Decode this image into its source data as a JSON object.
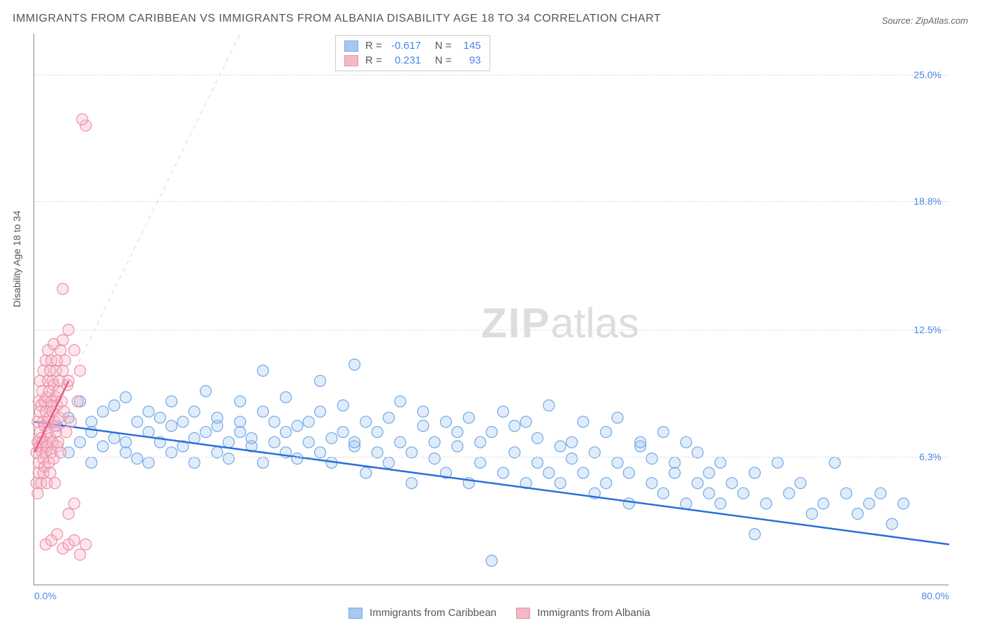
{
  "title": "IMMIGRANTS FROM CARIBBEAN VS IMMIGRANTS FROM ALBANIA DISABILITY AGE 18 TO 34 CORRELATION CHART",
  "source_label": "Source: ZipAtlas.com",
  "y_axis_label": "Disability Age 18 to 34",
  "watermark_zip": "ZIP",
  "watermark_atlas": "atlas",
  "chart": {
    "type": "scatter",
    "background_color": "#ffffff",
    "grid_color": "#dddddd",
    "axis_color": "#888888",
    "xlim": [
      0,
      80
    ],
    "ylim": [
      0,
      27
    ],
    "x_ticks": [
      {
        "pos": 0.0,
        "label": "0.0%"
      },
      {
        "pos": 80.0,
        "label": "80.0%"
      }
    ],
    "y_ticks": [
      {
        "pos": 6.3,
        "label": "6.3%"
      },
      {
        "pos": 12.5,
        "label": "12.5%"
      },
      {
        "pos": 18.8,
        "label": "18.8%"
      },
      {
        "pos": 25.0,
        "label": "25.0%"
      }
    ],
    "tick_label_color": "#4a86e8",
    "tick_label_fontsize": 14,
    "marker_radius": 8,
    "marker_fill_opacity": 0.35,
    "marker_stroke_width": 1.2,
    "trendline_width": 2.5,
    "trendline_dash_width": 1,
    "series": [
      {
        "name": "Immigrants from Caribbean",
        "color_fill": "#a8c8f0",
        "color_stroke": "#6fa8e8",
        "trendline_color": "#2a6fdc",
        "trendline": {
          "x1": 0,
          "y1": 8.0,
          "x2": 80,
          "y2": 2.0
        },
        "trendline_dashed": {
          "x1": 0,
          "y1": 8.0,
          "x2": 80,
          "y2": 2.0,
          "dash": false
        },
        "R": "-0.617",
        "N": "145",
        "points": [
          [
            2,
            7.8
          ],
          [
            3,
            8.2
          ],
          [
            3,
            6.5
          ],
          [
            4,
            7.0
          ],
          [
            4,
            9.0
          ],
          [
            5,
            8.0
          ],
          [
            5,
            6.0
          ],
          [
            5,
            7.5
          ],
          [
            6,
            8.5
          ],
          [
            6,
            6.8
          ],
          [
            7,
            7.2
          ],
          [
            7,
            8.8
          ],
          [
            8,
            6.5
          ],
          [
            8,
            7.0
          ],
          [
            8,
            9.2
          ],
          [
            9,
            8.0
          ],
          [
            9,
            6.2
          ],
          [
            10,
            7.5
          ],
          [
            10,
            8.5
          ],
          [
            10,
            6.0
          ],
          [
            11,
            7.0
          ],
          [
            11,
            8.2
          ],
          [
            12,
            6.5
          ],
          [
            12,
            9.0
          ],
          [
            12,
            7.8
          ],
          [
            13,
            6.8
          ],
          [
            13,
            8.0
          ],
          [
            14,
            7.2
          ],
          [
            14,
            6.0
          ],
          [
            14,
            8.5
          ],
          [
            15,
            7.5
          ],
          [
            15,
            9.5
          ],
          [
            16,
            6.5
          ],
          [
            16,
            7.8
          ],
          [
            16,
            8.2
          ],
          [
            17,
            7.0
          ],
          [
            17,
            6.2
          ],
          [
            18,
            8.0
          ],
          [
            18,
            7.5
          ],
          [
            18,
            9.0
          ],
          [
            19,
            6.8
          ],
          [
            19,
            7.2
          ],
          [
            20,
            8.5
          ],
          [
            20,
            6.0
          ],
          [
            20,
            10.5
          ],
          [
            21,
            7.0
          ],
          [
            21,
            8.0
          ],
          [
            22,
            6.5
          ],
          [
            22,
            7.5
          ],
          [
            22,
            9.2
          ],
          [
            23,
            7.8
          ],
          [
            23,
            6.2
          ],
          [
            24,
            8.0
          ],
          [
            24,
            7.0
          ],
          [
            25,
            6.5
          ],
          [
            25,
            8.5
          ],
          [
            25,
            10.0
          ],
          [
            26,
            7.2
          ],
          [
            26,
            6.0
          ],
          [
            27,
            7.5
          ],
          [
            27,
            8.8
          ],
          [
            28,
            6.8
          ],
          [
            28,
            7.0
          ],
          [
            28,
            10.8
          ],
          [
            29,
            8.0
          ],
          [
            29,
            5.5
          ],
          [
            30,
            6.5
          ],
          [
            30,
            7.5
          ],
          [
            31,
            8.2
          ],
          [
            31,
            6.0
          ],
          [
            32,
            7.0
          ],
          [
            32,
            9.0
          ],
          [
            33,
            6.5
          ],
          [
            33,
            5.0
          ],
          [
            34,
            7.8
          ],
          [
            34,
            8.5
          ],
          [
            35,
            6.2
          ],
          [
            35,
            7.0
          ],
          [
            36,
            8.0
          ],
          [
            36,
            5.5
          ],
          [
            37,
            7.5
          ],
          [
            37,
            6.8
          ],
          [
            38,
            8.2
          ],
          [
            38,
            5.0
          ],
          [
            39,
            7.0
          ],
          [
            39,
            6.0
          ],
          [
            40,
            1.2
          ],
          [
            40,
            7.5
          ],
          [
            41,
            8.5
          ],
          [
            41,
            5.5
          ],
          [
            42,
            6.5
          ],
          [
            42,
            7.8
          ],
          [
            43,
            5.0
          ],
          [
            43,
            8.0
          ],
          [
            44,
            6.0
          ],
          [
            44,
            7.2
          ],
          [
            45,
            5.5
          ],
          [
            45,
            8.8
          ],
          [
            46,
            6.8
          ],
          [
            46,
            5.0
          ],
          [
            47,
            7.0
          ],
          [
            47,
            6.2
          ],
          [
            48,
            5.5
          ],
          [
            48,
            8.0
          ],
          [
            49,
            4.5
          ],
          [
            49,
            6.5
          ],
          [
            50,
            7.5
          ],
          [
            50,
            5.0
          ],
          [
            51,
            6.0
          ],
          [
            51,
            8.2
          ],
          [
            52,
            5.5
          ],
          [
            52,
            4.0
          ],
          [
            53,
            6.8
          ],
          [
            53,
            7.0
          ],
          [
            54,
            5.0
          ],
          [
            54,
            6.2
          ],
          [
            55,
            7.5
          ],
          [
            55,
            4.5
          ],
          [
            56,
            5.5
          ],
          [
            56,
            6.0
          ],
          [
            57,
            4.0
          ],
          [
            57,
            7.0
          ],
          [
            58,
            5.0
          ],
          [
            58,
            6.5
          ],
          [
            59,
            4.5
          ],
          [
            59,
            5.5
          ],
          [
            60,
            6.0
          ],
          [
            60,
            4.0
          ],
          [
            61,
            5.0
          ],
          [
            62,
            4.5
          ],
          [
            63,
            2.5
          ],
          [
            63,
            5.5
          ],
          [
            64,
            4.0
          ],
          [
            65,
            6.0
          ],
          [
            66,
            4.5
          ],
          [
            67,
            5.0
          ],
          [
            68,
            3.5
          ],
          [
            69,
            4.0
          ],
          [
            70,
            6.0
          ],
          [
            71,
            4.5
          ],
          [
            72,
            3.5
          ],
          [
            73,
            4.0
          ],
          [
            74,
            4.5
          ],
          [
            75,
            3.0
          ],
          [
            76,
            4.0
          ]
        ]
      },
      {
        "name": "Immigrants from Albania",
        "color_fill": "#f5b8c8",
        "color_stroke": "#ec8fa8",
        "trendline_color": "#e85a88",
        "trendline": {
          "x1": 0,
          "y1": 6.5,
          "x2": 3,
          "y2": 10.0
        },
        "trendline_dashed": {
          "x1": 0,
          "y1": 6.5,
          "x2": 18,
          "y2": 27.0,
          "dash": true
        },
        "R": "0.231",
        "N": "93",
        "points": [
          [
            0.2,
            5.0
          ],
          [
            0.2,
            6.5
          ],
          [
            0.3,
            7.0
          ],
          [
            0.3,
            8.0
          ],
          [
            0.3,
            4.5
          ],
          [
            0.4,
            6.0
          ],
          [
            0.4,
            9.0
          ],
          [
            0.4,
            5.5
          ],
          [
            0.5,
            7.5
          ],
          [
            0.5,
            8.5
          ],
          [
            0.5,
            6.8
          ],
          [
            0.5,
            10.0
          ],
          [
            0.6,
            5.0
          ],
          [
            0.6,
            7.2
          ],
          [
            0.6,
            8.8
          ],
          [
            0.7,
            6.5
          ],
          [
            0.7,
            9.5
          ],
          [
            0.7,
            7.0
          ],
          [
            0.8,
            5.5
          ],
          [
            0.8,
            8.0
          ],
          [
            0.8,
            10.5
          ],
          [
            0.8,
            6.2
          ],
          [
            0.9,
            7.8
          ],
          [
            0.9,
            9.0
          ],
          [
            0.9,
            5.8
          ],
          [
            1.0,
            6.5
          ],
          [
            1.0,
            8.5
          ],
          [
            1.0,
            11.0
          ],
          [
            1.0,
            7.0
          ],
          [
            1.1,
            9.2
          ],
          [
            1.1,
            5.0
          ],
          [
            1.1,
            6.8
          ],
          [
            1.2,
            8.0
          ],
          [
            1.2,
            10.0
          ],
          [
            1.2,
            7.5
          ],
          [
            1.2,
            11.5
          ],
          [
            1.3,
            6.0
          ],
          [
            1.3,
            9.5
          ],
          [
            1.3,
            8.2
          ],
          [
            1.4,
            7.2
          ],
          [
            1.4,
            10.5
          ],
          [
            1.4,
            5.5
          ],
          [
            1.5,
            8.8
          ],
          [
            1.5,
            6.5
          ],
          [
            1.5,
            11.0
          ],
          [
            1.5,
            9.0
          ],
          [
            1.6,
            7.0
          ],
          [
            1.6,
            10.0
          ],
          [
            1.6,
            8.5
          ],
          [
            1.7,
            6.2
          ],
          [
            1.7,
            9.8
          ],
          [
            1.7,
            11.8
          ],
          [
            1.8,
            7.8
          ],
          [
            1.8,
            8.0
          ],
          [
            1.8,
            5.0
          ],
          [
            1.9,
            10.5
          ],
          [
            1.9,
            9.2
          ],
          [
            1.9,
            7.5
          ],
          [
            2.0,
            6.8
          ],
          [
            2.0,
            8.8
          ],
          [
            2.0,
            11.0
          ],
          [
            2.1,
            9.5
          ],
          [
            2.1,
            7.0
          ],
          [
            2.2,
            10.0
          ],
          [
            2.2,
            8.2
          ],
          [
            2.3,
            11.5
          ],
          [
            2.3,
            6.5
          ],
          [
            2.4,
            9.0
          ],
          [
            2.5,
            10.5
          ],
          [
            2.5,
            12.0
          ],
          [
            2.6,
            8.5
          ],
          [
            2.7,
            11.0
          ],
          [
            2.8,
            7.5
          ],
          [
            2.9,
            9.8
          ],
          [
            3.0,
            10.0
          ],
          [
            3.0,
            12.5
          ],
          [
            3.2,
            8.0
          ],
          [
            3.5,
            11.5
          ],
          [
            3.8,
            9.0
          ],
          [
            4.0,
            10.5
          ],
          [
            1.0,
            2.0
          ],
          [
            1.5,
            2.2
          ],
          [
            2.0,
            2.5
          ],
          [
            2.5,
            1.8
          ],
          [
            3.0,
            2.0
          ],
          [
            3.5,
            2.2
          ],
          [
            4.0,
            1.5
          ],
          [
            4.5,
            2.0
          ],
          [
            2.5,
            14.5
          ],
          [
            4.5,
            22.5
          ],
          [
            4.2,
            22.8
          ],
          [
            3.0,
            3.5
          ],
          [
            3.5,
            4.0
          ]
        ]
      }
    ]
  },
  "legend_top": {
    "R_label": "R =",
    "N_label": "N ="
  },
  "legend_bottom": {
    "series1_label": "Immigrants from Caribbean",
    "series2_label": "Immigrants from Albania"
  }
}
